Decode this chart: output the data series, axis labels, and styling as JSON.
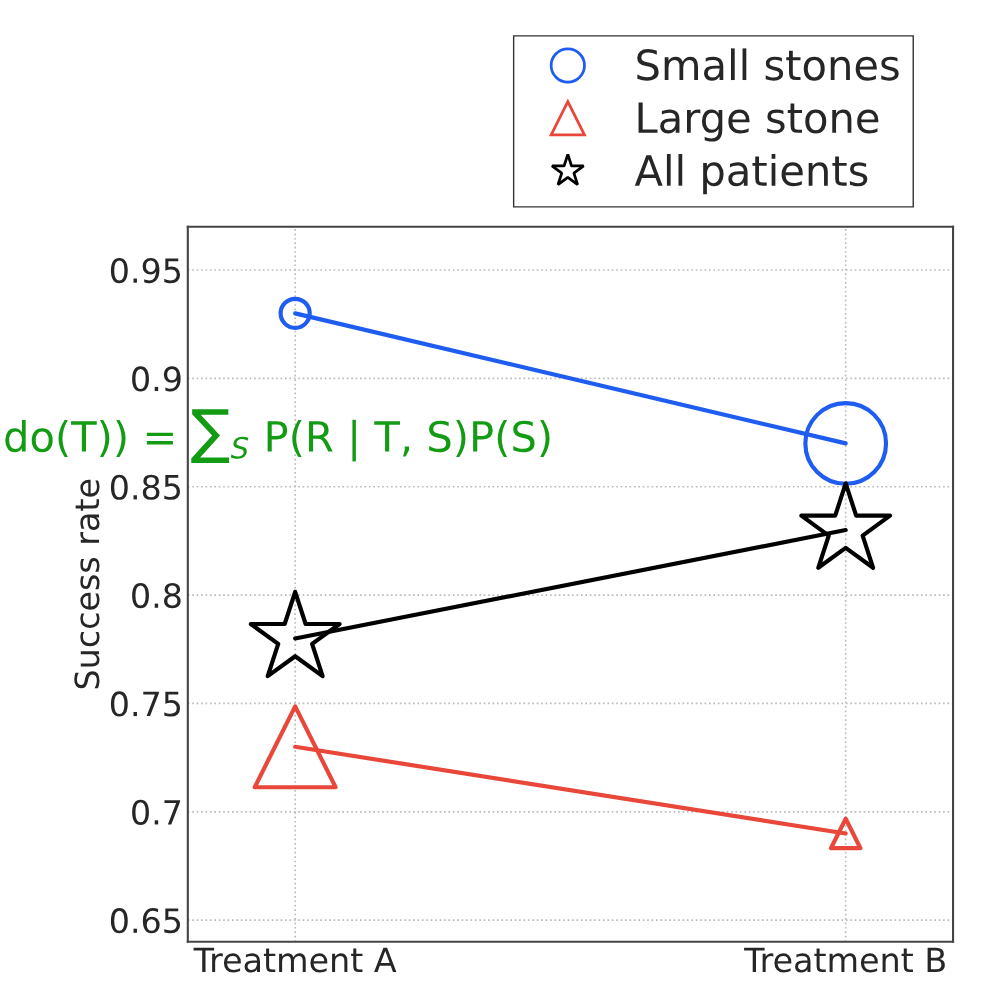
{
  "chart_data": {
    "type": "bubble",
    "ylabel": "Success rate",
    "categories": [
      "Treatment A",
      "Treatment B"
    ],
    "series": [
      {
        "type": "line",
        "color": "#1f5cf0",
        "values": [
          0.93,
          0.87
        ],
        "marker": "none"
      },
      {
        "type": "line",
        "color": "#e8473a",
        "values": [
          0.73,
          0.69
        ],
        "marker": "none"
      },
      {
        "type": "line",
        "color": "#000000",
        "values": [
          0.78,
          0.83
        ],
        "marker": "none"
      },
      {
        "name": "Small stones",
        "color": "#1f5cf0",
        "values": [
          0.93,
          0.87
        ],
        "marker": "circle",
        "sizes": [
          0.13,
          1
        ]
      },
      {
        "name": "Large stone",
        "color": "#e8473a",
        "values": [
          0.73,
          0.69
        ],
        "marker": "triangle",
        "sizes": [
          0.64,
          0.085
        ]
      },
      {
        "name": "All patients",
        "color": "#000000",
        "values": [
          0.78,
          0.83
        ],
        "marker": "star",
        "sizes": [
          0.48,
          0.48
        ]
      }
    ],
    "ylim": [
      0.64,
      0.97
    ],
    "yticks": [
      0.65,
      0.7,
      0.75,
      0.8,
      0.85,
      0.9,
      0.95
    ],
    "grid": true,
    "legend": "top right",
    "line_style": "solid",
    "annotations": [
      "do(T)) = ∑$_{S}$ P(R | T, S)P(S)"
    ]
  }
}
